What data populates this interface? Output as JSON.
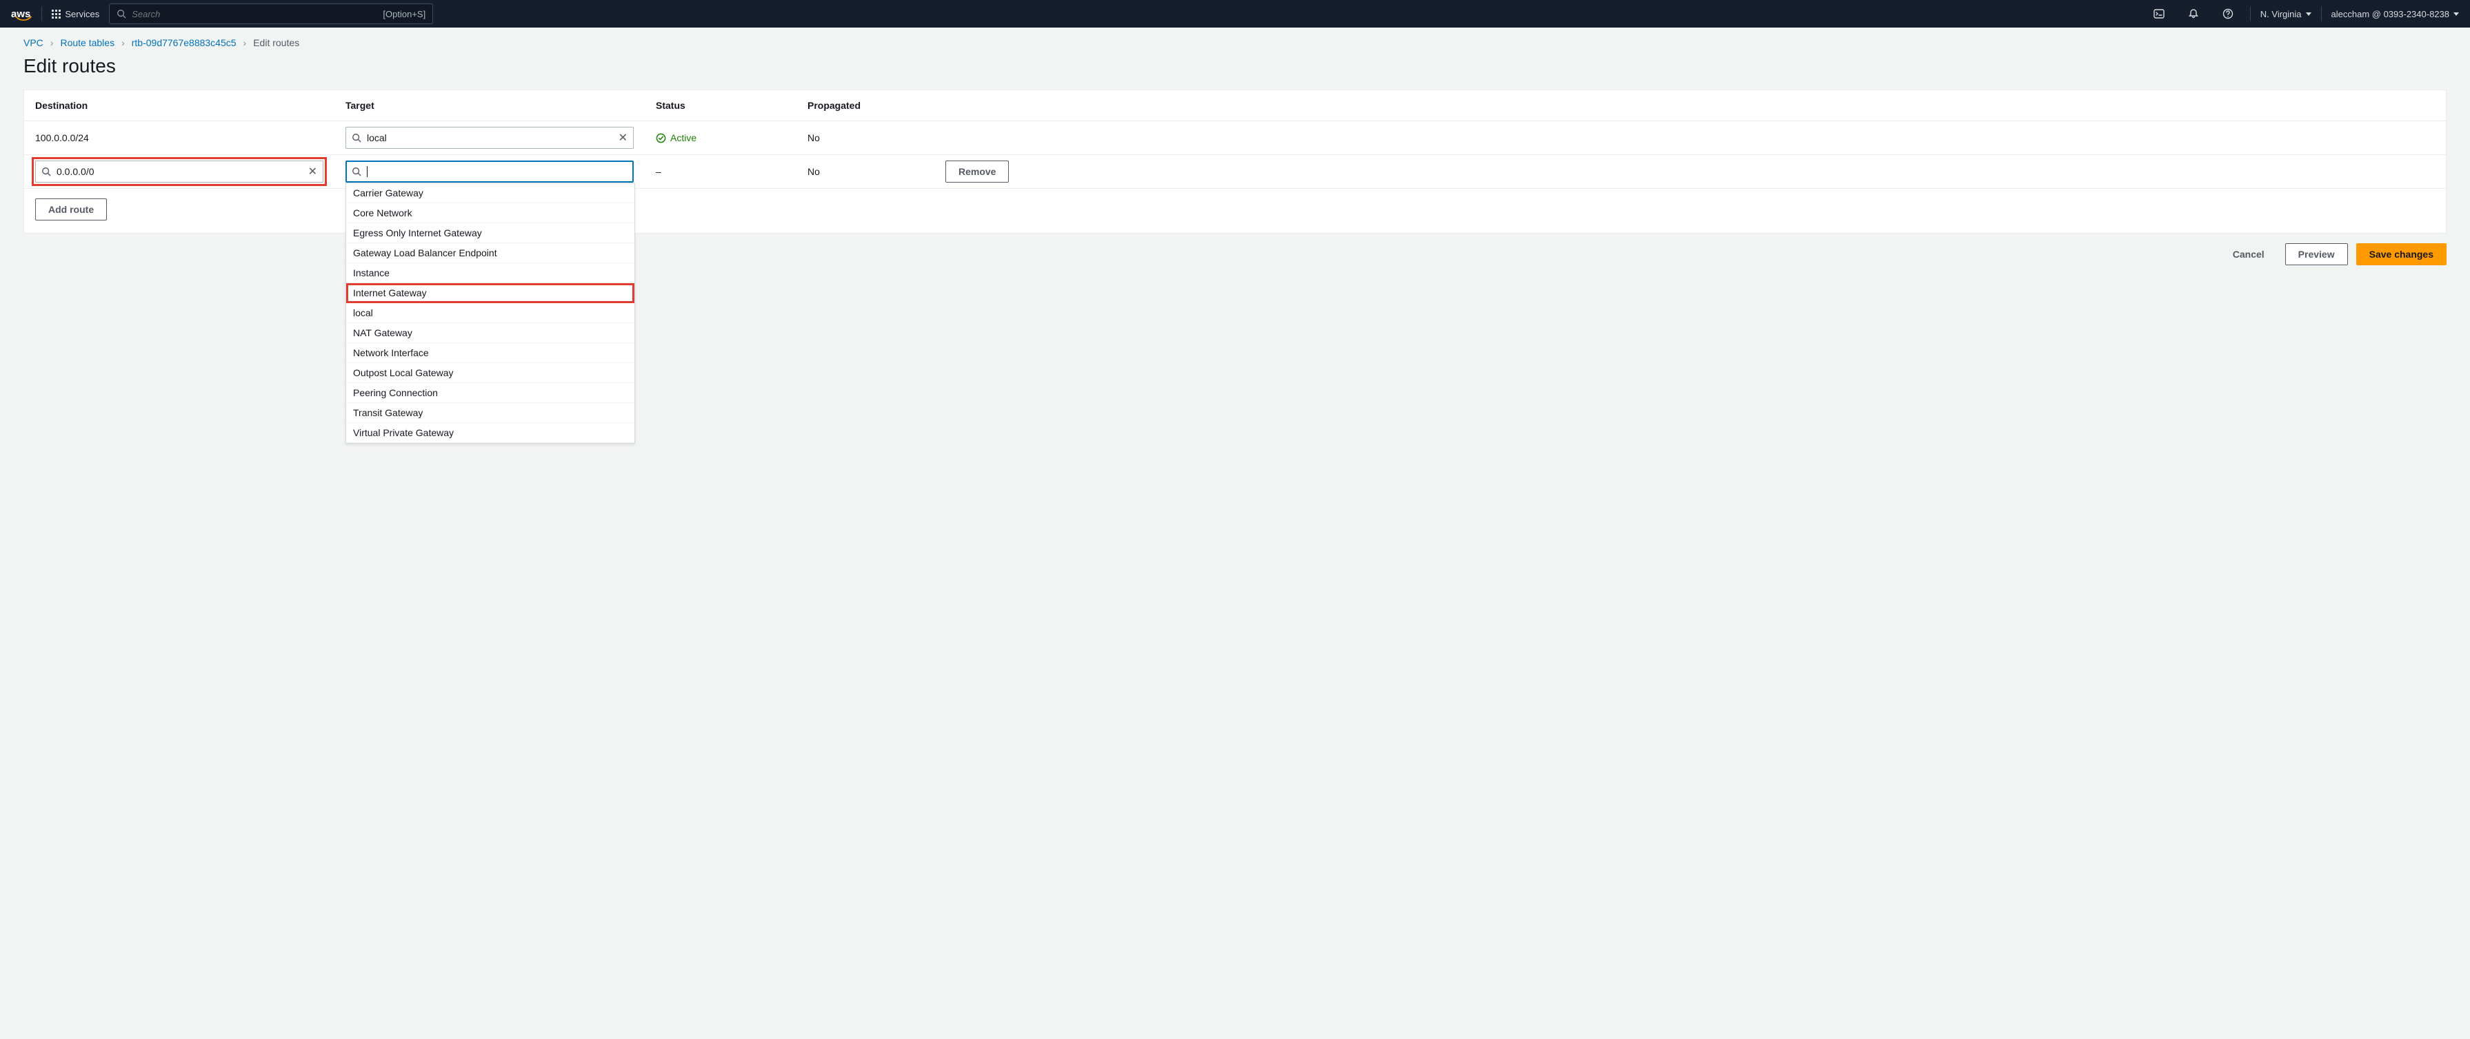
{
  "colors": {
    "topnav_bg": "#161e2d",
    "page_bg": "#f2f3f3",
    "accent_link": "#0073bb",
    "accent_orange": "#ff9900",
    "status_green": "#1d8102",
    "highlight_red": "#e03c31",
    "border_gray": "#eaeded"
  },
  "topnav": {
    "logo_text": "aws",
    "services_label": "Services",
    "search_placeholder": "Search",
    "search_hint": "[Option+S]",
    "region": "N. Virginia",
    "account": "aleccham @ 0393-2340-8238"
  },
  "breadcrumbs": {
    "items": [
      "VPC",
      "Route tables",
      "rtb-09d7767e8883c45c5"
    ],
    "current": "Edit routes"
  },
  "page": {
    "title": "Edit routes"
  },
  "table": {
    "headers": {
      "destination": "Destination",
      "target": "Target",
      "status": "Status",
      "propagated": "Propagated"
    },
    "rows": [
      {
        "destination_display": "100.0.0.0/24",
        "destination_editable": false,
        "target_value": "local",
        "target_focused": false,
        "target_highlight_red": false,
        "status": "Active",
        "status_kind": "active",
        "propagated": "No",
        "remove_label": null
      },
      {
        "destination_display": "0.0.0.0/0",
        "destination_editable": true,
        "destination_highlight_red": true,
        "target_value": "",
        "target_focused": true,
        "target_highlight_red": false,
        "status": "–",
        "status_kind": "none",
        "propagated": "No",
        "remove_label": "Remove"
      }
    ],
    "add_route_label": "Add route"
  },
  "target_dropdown": {
    "visible_for_row": 1,
    "highlight_red_option": "Internet Gateway",
    "options": [
      "Carrier Gateway",
      "Core Network",
      "Egress Only Internet Gateway",
      "Gateway Load Balancer Endpoint",
      "Instance",
      "Internet Gateway",
      "local",
      "NAT Gateway",
      "Network Interface",
      "Outpost Local Gateway",
      "Peering Connection",
      "Transit Gateway",
      "Virtual Private Gateway"
    ]
  },
  "footer": {
    "cancel": "Cancel",
    "preview": "Preview",
    "save": "Save changes"
  }
}
